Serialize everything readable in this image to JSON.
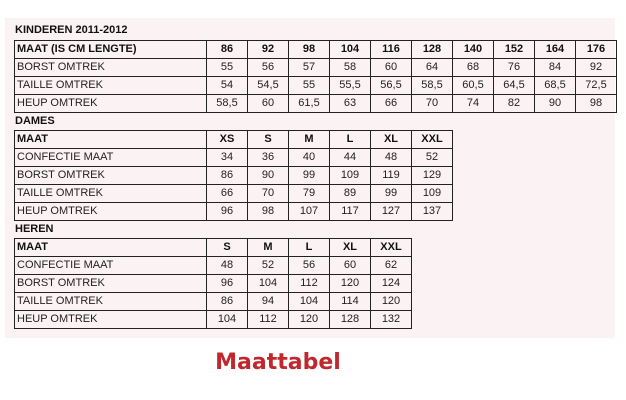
{
  "sections": [
    {
      "title": "KINDEREN 2011-2012",
      "rows": [
        [
          "MAAT (IS CM LENGTE)",
          "86",
          "92",
          "98",
          "104",
          "116",
          "128",
          "140",
          "152",
          "164",
          "176"
        ],
        [
          "BORST OMTREK",
          "55",
          "56",
          "57",
          "58",
          "60",
          "64",
          "68",
          "76",
          "84",
          "92"
        ],
        [
          "TAILLE OMTREK",
          "54",
          "54,5",
          "55",
          "55,5",
          "56,5",
          "58,5",
          "60,5",
          "64,5",
          "68,5",
          "72,5"
        ],
        [
          "HEUP OMTREK",
          "58,5",
          "60",
          "61,5",
          "63",
          "66",
          "70",
          "74",
          "82",
          "90",
          "98"
        ]
      ]
    },
    {
      "title": "DAMES",
      "rows": [
        [
          "MAAT",
          "XS",
          "S",
          "M",
          "L",
          "XL",
          "XXL"
        ],
        [
          "CONFECTIE MAAT",
          "34",
          "36",
          "40",
          "44",
          "48",
          "52"
        ],
        [
          "BORST OMTREK",
          "86",
          "90",
          "99",
          "109",
          "119",
          "129"
        ],
        [
          "TAILLE OMTREK",
          "66",
          "70",
          "79",
          "89",
          "99",
          "109"
        ],
        [
          "HEUP OMTREK",
          "96",
          "98",
          "107",
          "117",
          "127",
          "137"
        ]
      ]
    },
    {
      "title": "HEREN",
      "rows": [
        [
          "MAAT",
          "S",
          "M",
          "L",
          "XL",
          "XXL"
        ],
        [
          "CONFECTIE MAAT",
          "48",
          "52",
          "56",
          "60",
          "62"
        ],
        [
          "BORST OMTREK",
          "96",
          "104",
          "112",
          "120",
          "124"
        ],
        [
          "TAILLE OMTREK",
          "86",
          "94",
          "104",
          "114",
          "120"
        ],
        [
          "HEUP OMTREK",
          "104",
          "112",
          "120",
          "128",
          "132"
        ]
      ]
    }
  ],
  "footer_title": "Maattabel",
  "colors": {
    "background": "#fbf2f4",
    "footer": "#c0282d"
  }
}
